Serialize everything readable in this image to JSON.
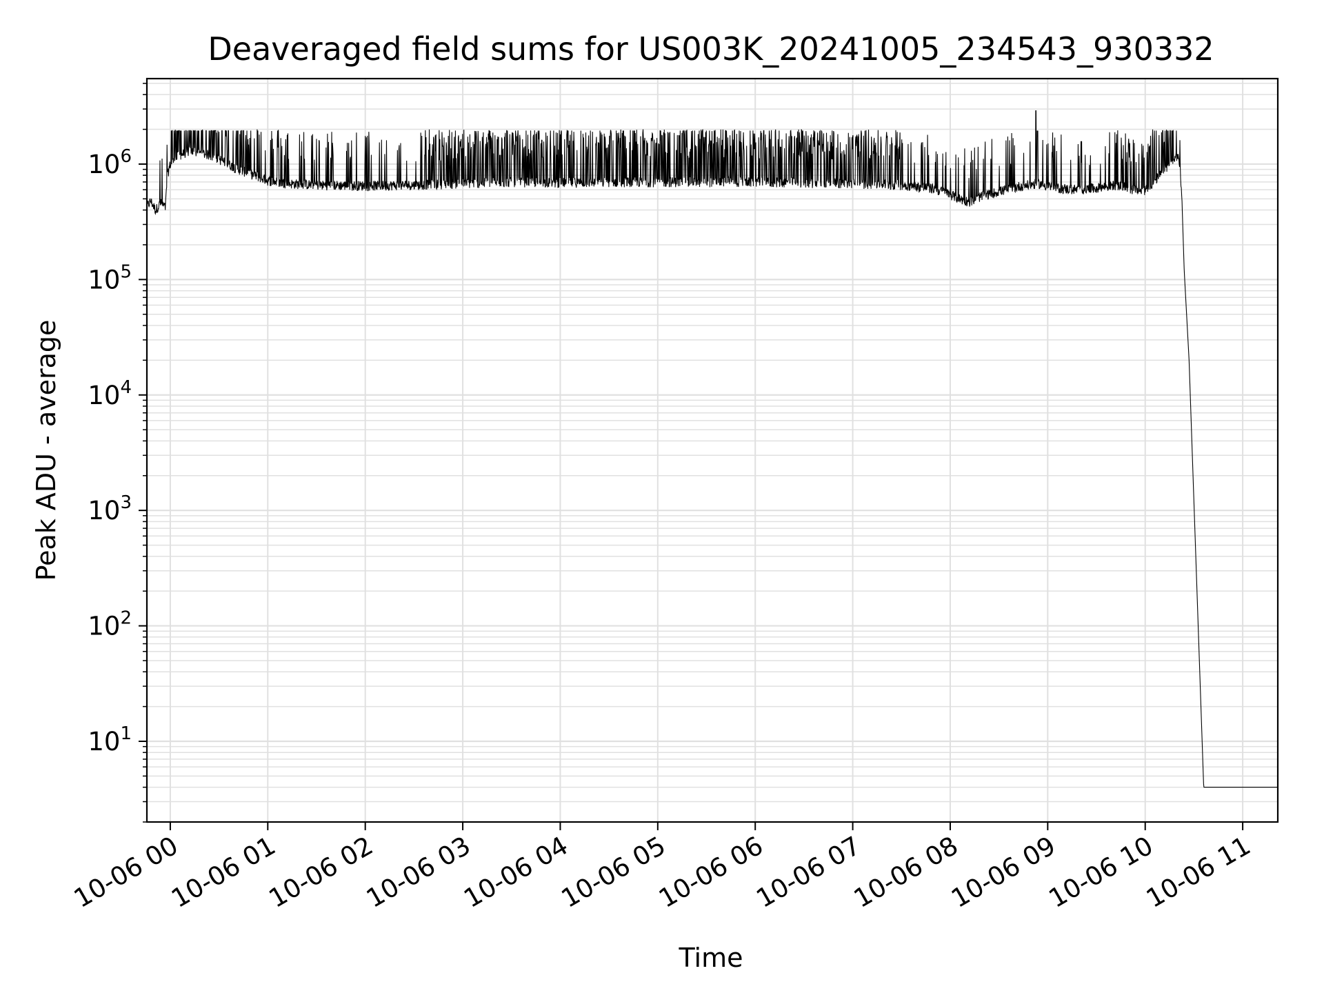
{
  "chart_data": {
    "type": "line",
    "title": "Deaveraged field sums for US003K_20241005_234543_930332",
    "xlabel": "Time",
    "ylabel": "Peak ADU - average",
    "yscale": "log",
    "ylim": [
      2,
      5500000
    ],
    "xlim_hours": [
      -0.24,
      11.36
    ],
    "grid": true,
    "minor_grid": true,
    "line_color": "#000000",
    "grid_color": "#e0e0e0",
    "x_ticks": [
      {
        "label": "10-06 00",
        "hours": 0
      },
      {
        "label": "10-06 01",
        "hours": 1
      },
      {
        "label": "10-06 02",
        "hours": 2
      },
      {
        "label": "10-06 03",
        "hours": 3
      },
      {
        "label": "10-06 04",
        "hours": 4
      },
      {
        "label": "10-06 05",
        "hours": 5
      },
      {
        "label": "10-06 06",
        "hours": 6
      },
      {
        "label": "10-06 07",
        "hours": 7
      },
      {
        "label": "10-06 08",
        "hours": 8
      },
      {
        "label": "10-06 09",
        "hours": 9
      },
      {
        "label": "10-06 10",
        "hours": 10
      },
      {
        "label": "10-06 11",
        "hours": 11
      }
    ],
    "y_ticks": [
      {
        "base": "10",
        "exp": "1",
        "value": 10
      },
      {
        "base": "10",
        "exp": "2",
        "value": 100
      },
      {
        "base": "10",
        "exp": "3",
        "value": 1000
      },
      {
        "base": "10",
        "exp": "4",
        "value": 10000
      },
      {
        "base": "10",
        "exp": "5",
        "value": 100000
      },
      {
        "base": "10",
        "exp": "6",
        "value": 1000000
      }
    ],
    "series": [
      {
        "x_hours": [
          -0.24,
          -0.2,
          -0.15,
          -0.1,
          -0.05,
          -0.03,
          0.0,
          0.05,
          0.1,
          0.2,
          0.3,
          0.4,
          0.5,
          0.7,
          0.9,
          1.0,
          1.2,
          1.5,
          2.0,
          2.5,
          3.0,
          3.5,
          4.0,
          4.5,
          5.0,
          5.5,
          6.0,
          6.5,
          7.0,
          7.5,
          7.8,
          7.95,
          8.1,
          8.2,
          8.3,
          8.5,
          8.7,
          8.9,
          9.1,
          9.3,
          9.5,
          9.7,
          9.85,
          9.95,
          10.0,
          10.1,
          10.15,
          10.2,
          10.25,
          10.3,
          10.33,
          10.36,
          10.38,
          10.4,
          10.45,
          10.6,
          11.0,
          11.36
        ],
        "y": [
          430000,
          480000,
          400000,
          460000,
          420000,
          800000,
          1000000,
          1100000,
          1200000,
          1300000,
          1250000,
          1200000,
          1100000,
          900000,
          780000,
          720000,
          680000,
          660000,
          650000,
          660000,
          680000,
          700000,
          690000,
          700000,
          700000,
          700000,
          700000,
          690000,
          680000,
          660000,
          620000,
          570000,
          500000,
          470000,
          520000,
          580000,
          640000,
          680000,
          620000,
          600000,
          620000,
          660000,
          610000,
          580000,
          600000,
          720000,
          800000,
          900000,
          1000000,
          1100000,
          1200000,
          900000,
          400000,
          120000,
          20000,
          4,
          4,
          4
        ]
      }
    ]
  }
}
